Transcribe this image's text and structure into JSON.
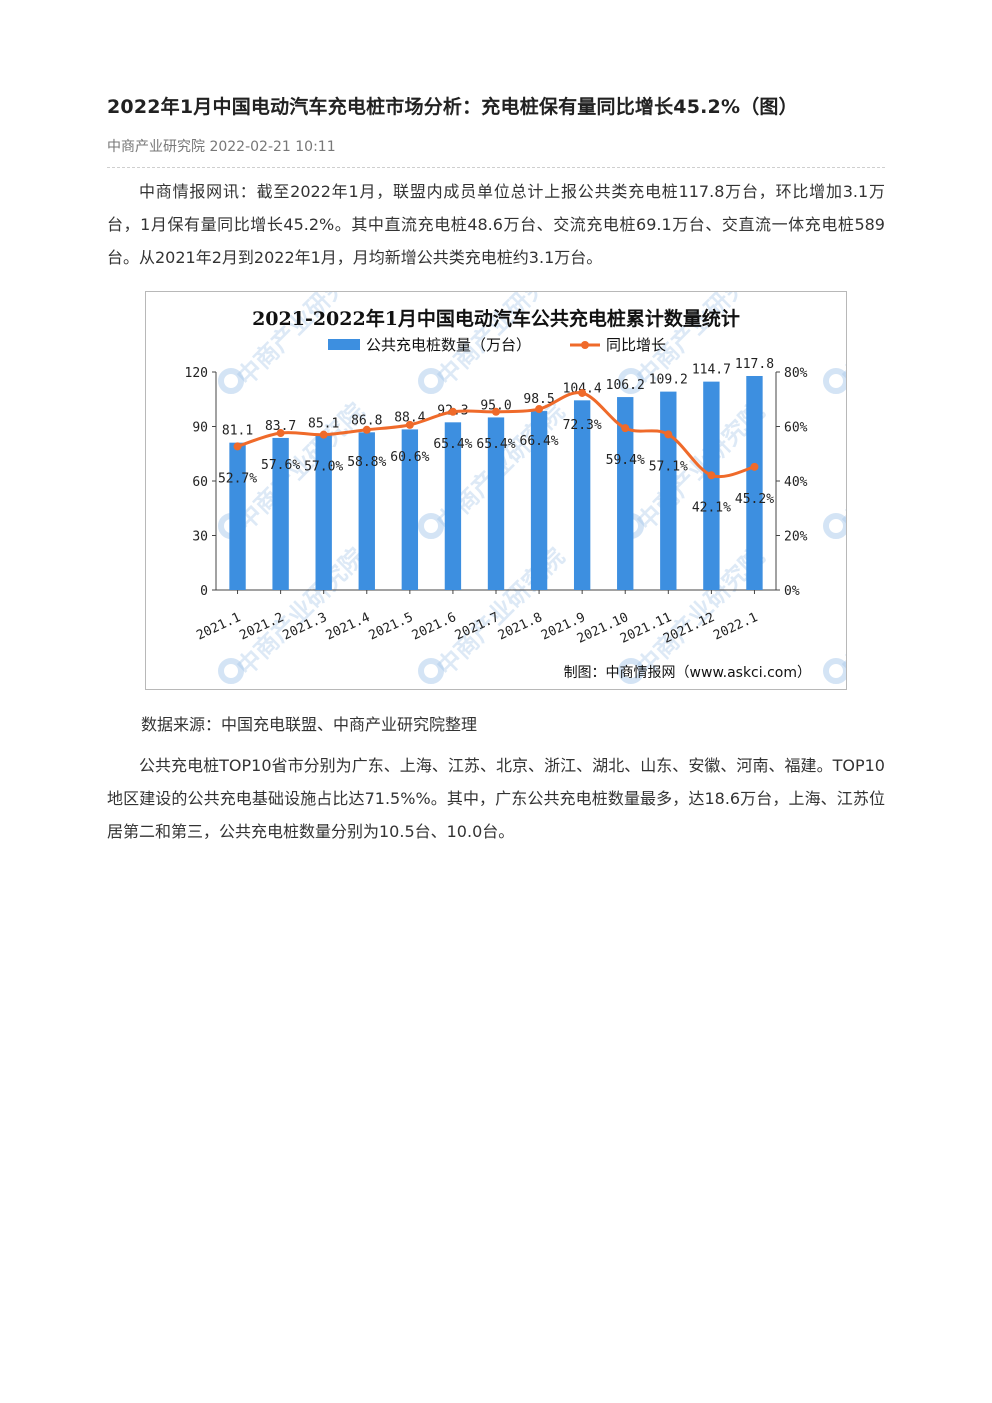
{
  "article": {
    "title": "2022年1月中国电动汽车充电桩市场分析：充电桩保有量同比增长45.2%（图）",
    "source_name": "中商产业研究院",
    "datetime": "2022-02-21 10:11",
    "paragraph1": "中商情报网讯：截至2022年1月，联盟内成员单位总计上报公共类充电桩117.8万台，环比增加3.1万台，1月保有量同比增长45.2%。其中直流充电桩48.6万台、交流充电桩69.1万台、交直流一体充电桩589台。从2021年2月到2022年1月，月均新增公共类充电桩约3.1万台。",
    "data_source": "数据来源：中国充电联盟、中商产业研究院整理",
    "paragraph2": "公共充电桩TOP10省市分别为广东、上海、江苏、北京、浙江、湖北、山东、安徽、河南、福建。TOP10地区建设的公共充电基础设施占比达71.5%%。其中，广东公共充电桩数量最多，达18.6万台，上海、江苏位居第二和第三，公共充电桩数量分别为10.5台、10.0台。"
  },
  "chart_data": {
    "type": "bar",
    "title": "2021-2022年1月中国电动汽车公共充电桩累计数量统计",
    "categories": [
      "2021.1",
      "2021.2",
      "2021.3",
      "2021.4",
      "2021.5",
      "2021.6",
      "2021.7",
      "2021.8",
      "2021.9",
      "2021.10",
      "2021.11",
      "2021.12",
      "2022.1"
    ],
    "series": [
      {
        "name": "公共充电桩数量（万台）",
        "type": "bar",
        "axis": "left",
        "color": "#3d8fe0",
        "values": [
          81.1,
          83.7,
          85.1,
          86.8,
          88.4,
          92.3,
          95.0,
          98.5,
          104.4,
          106.2,
          109.2,
          114.7,
          117.8
        ],
        "labels": [
          "81.1",
          "83.7",
          "85.1",
          "86.8",
          "88.4",
          "92.3",
          "95.0",
          "98.5",
          "104.4",
          "106.2",
          "109.2",
          "114.7",
          "117.8"
        ]
      },
      {
        "name": "同比增长",
        "type": "line",
        "axis": "right",
        "color": "#ef6a2a",
        "values": [
          52.7,
          57.6,
          57.0,
          58.8,
          60.6,
          65.4,
          65.4,
          66.4,
          72.3,
          59.4,
          57.1,
          42.1,
          45.2
        ],
        "labels": [
          "52.7%",
          "57.6%",
          "57.0%",
          "58.8%",
          "60.6%",
          "65.4%",
          "65.4%",
          "66.4%",
          "72.3%",
          "59.4%",
          "57.1%",
          "42.1%",
          "45.2%"
        ]
      }
    ],
    "ylim_left": [
      0,
      120
    ],
    "yticks_left": [
      "0",
      "30",
      "60",
      "90",
      "120"
    ],
    "ylim_right": [
      0,
      80
    ],
    "yticks_right": [
      "0%",
      "20%",
      "40%",
      "60%",
      "80%"
    ],
    "credit": "制图：中商情报网（www.askci.com）",
    "watermark": "中商产业研究院",
    "legend_position": "top-center"
  }
}
